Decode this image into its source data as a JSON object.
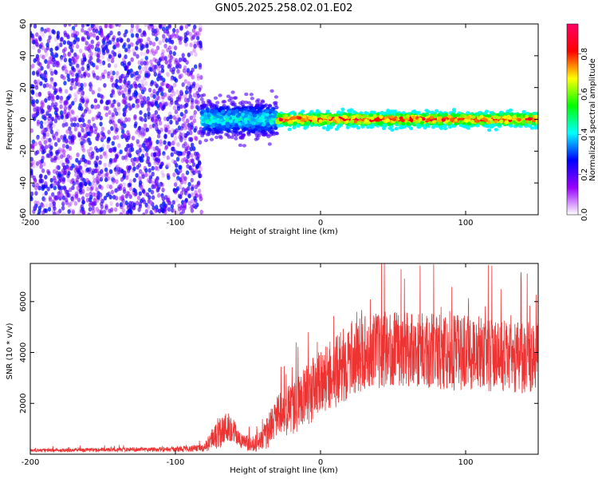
{
  "title": "GN05.2025.258.02.01.E02",
  "chart_data": [
    {
      "type": "heatmap",
      "name": "spectrogram",
      "xlabel": "Height of straight line (km)",
      "ylabel": "Frequency (Hz)",
      "xlim": [
        -200,
        150
      ],
      "ylim": [
        -60,
        60
      ],
      "xticks": [
        -200,
        -100,
        0,
        100
      ],
      "xtick_labels": [
        "-200",
        "-100",
        "0",
        "100"
      ],
      "yticks": [
        -60,
        -40,
        -20,
        0,
        20,
        40,
        60
      ],
      "ytick_labels": [
        "-60",
        "-40",
        "-20",
        "0",
        "20",
        "40",
        "60"
      ],
      "colorbar": {
        "label": "Normalized spectral amplitude",
        "range": [
          0.0,
          0.95
        ],
        "ticks": [
          0.0,
          0.2,
          0.4,
          0.6,
          0.8
        ],
        "tick_labels": [
          "0.0",
          "0.2",
          "0.4",
          "0.6",
          "0.8"
        ],
        "colors": [
          "#ffffff",
          "#9900ff",
          "#0000ff",
          "#00ffff",
          "#00ff00",
          "#ffff00",
          "#ff0000",
          "#ff0066"
        ]
      },
      "regions": [
        {
          "x_range": [
            -200,
            -82
          ],
          "description": "noise",
          "freq_spread": 60,
          "amplitude": [
            0.05,
            0.3
          ]
        },
        {
          "x_range": [
            -82,
            -30
          ],
          "description": "transition",
          "freq_center": 0,
          "freq_spread": 10,
          "amplitude": [
            0.2,
            0.5
          ]
        },
        {
          "x_range": [
            -30,
            150
          ],
          "description": "carrier",
          "freq_center": 0,
          "freq_spread": 4,
          "amplitude": [
            0.4,
            0.95
          ]
        }
      ]
    },
    {
      "type": "line",
      "name": "snr",
      "xlabel": "Height of straight line (km)",
      "ylabel": "SNR (10 * v/v)",
      "xlim": [
        -200,
        150
      ],
      "ylim": [
        0,
        7500
      ],
      "xticks": [
        -200,
        -100,
        0,
        100
      ],
      "xtick_labels": [
        "-200",
        "-100",
        "0",
        "100"
      ],
      "yticks": [
        2000,
        4000,
        6000
      ],
      "ytick_labels": [
        "2000",
        "4000",
        "6000"
      ],
      "color": "#ee3333",
      "envelope": {
        "x": [
          -200,
          -150,
          -100,
          -80,
          -70,
          -62,
          -55,
          -45,
          -38,
          -30,
          -20,
          -10,
          0,
          10,
          20,
          30,
          50,
          70,
          90,
          110,
          130,
          150
        ],
        "mean": [
          150,
          180,
          200,
          250,
          900,
          1100,
          500,
          400,
          700,
          1500,
          1800,
          2300,
          2800,
          3200,
          3700,
          4000,
          4200,
          4100,
          4000,
          4000,
          3800,
          3800
        ],
        "spread": [
          60,
          80,
          100,
          150,
          700,
          600,
          300,
          300,
          600,
          800,
          1100,
          1200,
          1300,
          1400,
          1500,
          1500,
          1500,
          1500,
          1500,
          1500,
          1400,
          1400
        ]
      }
    }
  ]
}
